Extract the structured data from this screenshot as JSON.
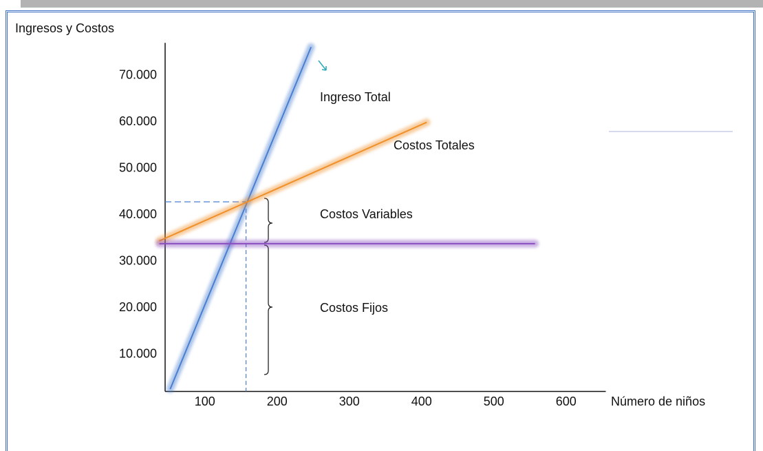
{
  "chart_data": {
    "type": "line",
    "y_axis_label": "Ingresos y Costos",
    "x_axis_label": "Número de niños",
    "xlim": [
      45,
      655
    ],
    "xticks": [
      100,
      200,
      300,
      400,
      500,
      600
    ],
    "ylim": [
      2000,
      77000
    ],
    "yticks": [
      {
        "value": 10000,
        "label": "10.000"
      },
      {
        "value": 20000,
        "label": "20.000"
      },
      {
        "value": 30000,
        "label": "30.000"
      },
      {
        "value": 40000,
        "label": "40.000"
      },
      {
        "value": 50000,
        "label": "50.000"
      },
      {
        "value": 60000,
        "label": "60.000"
      },
      {
        "value": 70000,
        "label": "70.000"
      }
    ],
    "grid": false,
    "series": [
      {
        "name": "Ingreso Total",
        "color": "#4a7fd0",
        "x": [
          52,
          247
        ],
        "values": [
          2500,
          76100
        ]
      },
      {
        "name": "Costos Totales",
        "color": "#f0902a",
        "x": [
          37,
          407
        ],
        "values": [
          34400,
          59900
        ]
      },
      {
        "name": "Costos Fijos",
        "color": "#8a4fc0",
        "x": [
          37,
          557
        ],
        "values": [
          33800,
          33800
        ]
      }
    ],
    "annotations": [
      "Costos Variables"
    ],
    "reference_point": {
      "x": 157,
      "y": 42800
    }
  }
}
